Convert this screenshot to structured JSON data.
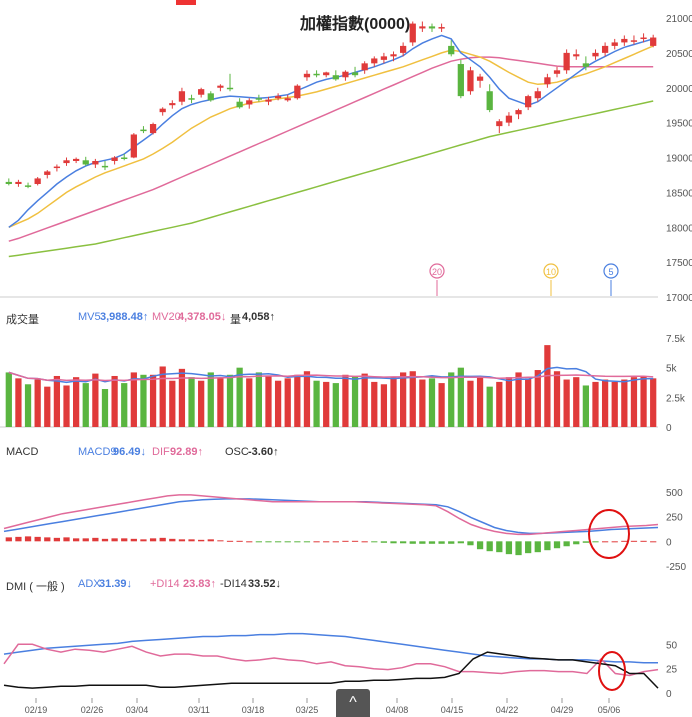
{
  "title": "加權指數(0000)",
  "colors": {
    "up": "#e03a3a",
    "down": "#5ab540",
    "ma5": "#4a7fe0",
    "ma10": "#f0c040",
    "ma20": "#e06a9a",
    "ma60": "#8ac040",
    "highlight": "#e01010"
  },
  "price_axis": [
    "21000",
    "20500",
    "20000",
    "19500",
    "19000",
    "18500",
    "18000",
    "17500",
    "17000"
  ],
  "vol_axis": [
    "7.5k",
    "5k",
    "2.5k",
    "0"
  ],
  "macd_axis": [
    "500",
    "250",
    "0",
    "-250"
  ],
  "dmi_axis": [
    "50",
    "25",
    "0"
  ],
  "dates": [
    "02/19",
    "02/26",
    "03/04",
    "03/11",
    "03/18",
    "03/25",
    "04/08",
    "04/15",
    "04/22",
    "04/29",
    "05/06"
  ],
  "ma_markers": [
    {
      "label": "20",
      "color": "#e06a9a"
    },
    {
      "label": "10",
      "color": "#f0c040"
    },
    {
      "label": "5",
      "color": "#4a7fe0"
    }
  ],
  "volume_header": {
    "title": "成交量",
    "mv5_label": "MV5",
    "mv5_value": "3,988.48↑",
    "mv20_label": "MV20",
    "mv20_value": "4,378.05↓",
    "vol_label": "量",
    "vol_value": "4,058↑"
  },
  "macd_header": {
    "title": "MACD",
    "macd9_label": "MACD9",
    "macd9_value": "96.49↓",
    "dif_label": "DIF",
    "dif_value": "92.89↑",
    "osc_label": "OSC",
    "osc_value": "-3.60↑"
  },
  "dmi_header": {
    "title": "DMI ( 一般 )",
    "adx_label": "ADX",
    "adx_value": "31.39↓",
    "pdi_label": "+DI14",
    "pdi_value": "23.83↑",
    "mdi_label": "-DI14",
    "mdi_value": "33.52↓"
  },
  "nav": {
    "up_icon": "^"
  },
  "chart_data": {
    "type": "candlestick",
    "title": "加權指數(0000)",
    "ylim": [
      17000,
      21000
    ],
    "candles": [
      [
        18650,
        18700,
        18600,
        18620
      ],
      [
        18620,
        18680,
        18580,
        18650
      ],
      [
        18600,
        18640,
        18560,
        18580
      ],
      [
        18620,
        18720,
        18600,
        18700
      ],
      [
        18750,
        18820,
        18700,
        18800
      ],
      [
        18850,
        18900,
        18800,
        18870
      ],
      [
        18920,
        19000,
        18880,
        18960
      ],
      [
        18950,
        19000,
        18920,
        18980
      ],
      [
        18960,
        19010,
        18880,
        18900
      ],
      [
        18900,
        18980,
        18850,
        18950
      ],
      [
        18880,
        18950,
        18820,
        18860
      ],
      [
        18950,
        19020,
        18900,
        19000
      ],
      [
        19000,
        19050,
        18960,
        18980
      ],
      [
        19000,
        19350,
        18990,
        19330
      ],
      [
        19400,
        19450,
        19350,
        19380
      ],
      [
        19350,
        19500,
        19330,
        19480
      ],
      [
        19650,
        19720,
        19600,
        19700
      ],
      [
        19750,
        19820,
        19700,
        19780
      ],
      [
        19800,
        20000,
        19750,
        19950
      ],
      [
        19850,
        19900,
        19780,
        19830
      ],
      [
        19900,
        20000,
        19860,
        19980
      ],
      [
        19920,
        19950,
        19800,
        19820
      ],
      [
        20000,
        20050,
        19950,
        20030
      ],
      [
        20000,
        20200,
        19950,
        19980
      ],
      [
        19800,
        19850,
        19700,
        19720
      ],
      [
        19760,
        19850,
        19700,
        19820
      ],
      [
        19850,
        19900,
        19800,
        19830
      ],
      [
        19800,
        19870,
        19750,
        19830
      ],
      [
        19850,
        19920,
        19820,
        19880
      ],
      [
        19820,
        19900,
        19800,
        19850
      ],
      [
        19850,
        20050,
        19830,
        20030
      ],
      [
        20150,
        20250,
        20100,
        20200
      ],
      [
        20200,
        20250,
        20150,
        20180
      ],
      [
        20180,
        20230,
        20150,
        20220
      ],
      [
        20180,
        20250,
        20100,
        20120
      ],
      [
        20150,
        20250,
        20100,
        20230
      ],
      [
        20220,
        20300,
        20150,
        20180
      ],
      [
        20250,
        20380,
        20200,
        20350
      ],
      [
        20350,
        20450,
        20300,
        20420
      ],
      [
        20400,
        20500,
        20350,
        20450
      ],
      [
        20450,
        20520,
        20380,
        20480
      ],
      [
        20500,
        20650,
        20450,
        20600
      ],
      [
        20650,
        20950,
        20600,
        20920
      ],
      [
        20850,
        20950,
        20800,
        20880
      ],
      [
        20880,
        20920,
        20800,
        20850
      ],
      [
        20850,
        20920,
        20800,
        20870
      ],
      [
        20600,
        20680,
        20450,
        20480
      ],
      [
        20340,
        20400,
        19850,
        19880
      ],
      [
        19950,
        20300,
        19900,
        20250
      ],
      [
        20100,
        20200,
        20000,
        20160
      ],
      [
        19950,
        20050,
        19650,
        19680
      ],
      [
        19450,
        19550,
        19350,
        19520
      ],
      [
        19500,
        19650,
        19450,
        19600
      ],
      [
        19620,
        19700,
        19550,
        19680
      ],
      [
        19720,
        19900,
        19680,
        19880
      ],
      [
        19850,
        20000,
        19800,
        19950
      ],
      [
        20050,
        20200,
        20000,
        20150
      ],
      [
        20200,
        20300,
        20150,
        20250
      ],
      [
        20250,
        20550,
        20200,
        20500
      ],
      [
        20450,
        20550,
        20400,
        20480
      ],
      [
        20350,
        20450,
        20250,
        20300
      ],
      [
        20450,
        20550,
        20400,
        20500
      ],
      [
        20500,
        20650,
        20450,
        20600
      ],
      [
        20600,
        20700,
        20550,
        20650
      ],
      [
        20650,
        20750,
        20600,
        20700
      ],
      [
        20680,
        20750,
        20620,
        20680
      ],
      [
        20700,
        20780,
        20650,
        20720
      ],
      [
        20600,
        20760,
        20580,
        20720
      ]
    ],
    "ma5": [
      18000,
      18100,
      18250,
      18380,
      18500,
      18620,
      18720,
      18810,
      18880,
      18930,
      18960,
      18990,
      19050,
      19150,
      19250,
      19350,
      19480,
      19600,
      19700,
      19760,
      19800,
      19830,
      19860,
      19880,
      19870,
      19860,
      19850,
      19860,
      19880,
      19900,
      19960,
      20020,
      20080,
      20120,
      20150,
      20180,
      20220,
      20260,
      20300,
      20350,
      20400,
      20460,
      20560,
      20640,
      20700,
      20750,
      20700,
      20500,
      20400,
      20300,
      20150,
      19980,
      19850,
      19800,
      19750,
      19800,
      19900,
      20000,
      20100,
      20200,
      20300,
      20380,
      20450,
      20520,
      20580,
      20620,
      20660,
      20700
    ],
    "ma10": [
      18000,
      18060,
      18120,
      18200,
      18300,
      18400,
      18500,
      18580,
      18650,
      18720,
      18780,
      18830,
      18880,
      18930,
      18980,
      19050,
      19130,
      19220,
      19320,
      19420,
      19500,
      19580,
      19640,
      19700,
      19740,
      19780,
      19800,
      19820,
      19840,
      19860,
      19880,
      19910,
      19940,
      19980,
      20020,
      20060,
      20100,
      20140,
      20180,
      20220,
      20260,
      20300,
      20350,
      20400,
      20450,
      20500,
      20540,
      20520,
      20480,
      20440,
      20380,
      20300,
      20220,
      20150,
      20080,
      20050,
      20060,
      20080,
      20120,
      20160,
      20200,
      20250,
      20300,
      20360,
      20420,
      20480,
      20540,
      20600
    ],
    "ma20": [
      17800,
      17840,
      17890,
      17940,
      17990,
      18040,
      18090,
      18140,
      18190,
      18240,
      18290,
      18340,
      18390,
      18440,
      18490,
      18540,
      18600,
      18660,
      18720,
      18780,
      18840,
      18900,
      18960,
      19020,
      19080,
      19140,
      19200,
      19260,
      19320,
      19380,
      19440,
      19500,
      19560,
      19620,
      19680,
      19740,
      19800,
      19860,
      19920,
      19980,
      20040,
      20100,
      20160,
      20220,
      20280,
      20330,
      20380,
      20410,
      20430,
      20440,
      20440,
      20430,
      20410,
      20390,
      20370,
      20350,
      20330,
      20310,
      20300,
      20300,
      20300,
      20300,
      20300,
      20300,
      20300,
      20300,
      20300,
      20300
    ],
    "ma60": [
      17580,
      17600,
      17620,
      17640,
      17660,
      17680,
      17700,
      17720,
      17740,
      17760,
      17790,
      17820,
      17850,
      17880,
      17910,
      17940,
      17970,
      18000,
      18030,
      18060,
      18100,
      18140,
      18180,
      18220,
      18260,
      18300,
      18340,
      18380,
      18420,
      18460,
      18500,
      18540,
      18580,
      18620,
      18660,
      18700,
      18740,
      18780,
      18820,
      18860,
      18900,
      18940,
      18980,
      19020,
      19060,
      19100,
      19140,
      19180,
      19220,
      19260,
      19300,
      19330,
      19360,
      19390,
      19420,
      19450,
      19480,
      19510,
      19540,
      19570,
      19600,
      19630,
      19660,
      19690,
      19720,
      19750,
      19780,
      19810
    ],
    "volume_bars": [
      4.6,
      4.1,
      3.6,
      4.0,
      3.4,
      4.3,
      3.5,
      4.2,
      3.7,
      4.5,
      3.2,
      4.3,
      3.7,
      4.6,
      4.4,
      4.4,
      5.1,
      3.9,
      4.9,
      4.2,
      3.9,
      4.6,
      4.1,
      4.4,
      5.0,
      4.1,
      4.6,
      4.3,
      3.9,
      4.1,
      4.4,
      4.7,
      3.9,
      3.8,
      3.7,
      4.4,
      4.3,
      4.5,
      3.8,
      3.6,
      4.2,
      4.6,
      4.7,
      4.0,
      4.1,
      3.7,
      4.6,
      5.0,
      3.9,
      4.2,
      3.4,
      3.8,
      4.2,
      4.6,
      4.1,
      4.8,
      6.9,
      4.7,
      4.0,
      4.2,
      3.5,
      3.8,
      4.0,
      3.8,
      4.0,
      4.2,
      4.3,
      4.1
    ],
    "macd_osc": [
      40,
      45,
      50,
      45,
      40,
      35,
      40,
      30,
      30,
      35,
      25,
      30,
      30,
      25,
      20,
      30,
      35,
      25,
      20,
      20,
      15,
      20,
      10,
      5,
      5,
      0,
      -5,
      -5,
      -5,
      -5,
      -10,
      -10,
      0,
      0,
      0,
      5,
      5,
      0,
      -10,
      -15,
      -20,
      -20,
      -25,
      -25,
      -25,
      -25,
      -25,
      -20,
      -40,
      -80,
      -100,
      -110,
      -130,
      -140,
      -120,
      -110,
      -90,
      -70,
      -50,
      -30,
      -15,
      -10,
      0,
      0,
      5,
      5,
      5,
      0
    ],
    "macd_dif": [
      130,
      160,
      190,
      220,
      250,
      280,
      300,
      320,
      340,
      360,
      380,
      400,
      420,
      440,
      460,
      470,
      470,
      460,
      450,
      440,
      430,
      420,
      410,
      400,
      400,
      400,
      400,
      400,
      400,
      400,
      400,
      395,
      390,
      385,
      380,
      375,
      370,
      360,
      300,
      230,
      170,
      130,
      100,
      80,
      70,
      70,
      80,
      90,
      100,
      110,
      120,
      130,
      140,
      150,
      155,
      160,
      170
    ],
    "macd_macd9": [
      100,
      120,
      140,
      160,
      180,
      200,
      220,
      240,
      260,
      280,
      300,
      320,
      340,
      360,
      380,
      400,
      410,
      420,
      425,
      430,
      430,
      430,
      425,
      420,
      415,
      410,
      405,
      400,
      400,
      400,
      400,
      400,
      395,
      390,
      385,
      380,
      375,
      370,
      350,
      300,
      240,
      190,
      140,
      110,
      90,
      80,
      80,
      85,
      90,
      95,
      100,
      110,
      120,
      125,
      130,
      135,
      140
    ],
    "dmi_adx": [
      40,
      42,
      44,
      46,
      47,
      48,
      49,
      50,
      51,
      53,
      54,
      55,
      56,
      57,
      58,
      58,
      59,
      59,
      60,
      60,
      61,
      61,
      60,
      59,
      58,
      56,
      54,
      52,
      50,
      48,
      46,
      44,
      42,
      40,
      38,
      37,
      36,
      35,
      35,
      34,
      34,
      34,
      33,
      32,
      32,
      31,
      31
    ],
    "dmi_pdi": [
      30,
      50,
      50,
      45,
      42,
      45,
      44,
      42,
      45,
      48,
      42,
      38,
      40,
      40,
      38,
      38,
      35,
      33,
      34,
      36,
      34,
      33,
      30,
      32,
      28,
      27,
      25,
      24,
      26,
      30,
      30,
      27,
      22,
      22,
      21,
      20,
      22,
      23,
      23,
      22,
      22,
      20,
      35,
      20,
      18,
      22,
      24
    ],
    "dmi_mdi": [
      8,
      6,
      5,
      6,
      7,
      7,
      8,
      8,
      8,
      8,
      8,
      6,
      6,
      7,
      8,
      9,
      10,
      10,
      10,
      10,
      10,
      10,
      10,
      10,
      12,
      12,
      13,
      13,
      14,
      15,
      15,
      16,
      20,
      35,
      42,
      40,
      38,
      36,
      35,
      34,
      34,
      32,
      30,
      28,
      20,
      20,
      5
    ]
  }
}
